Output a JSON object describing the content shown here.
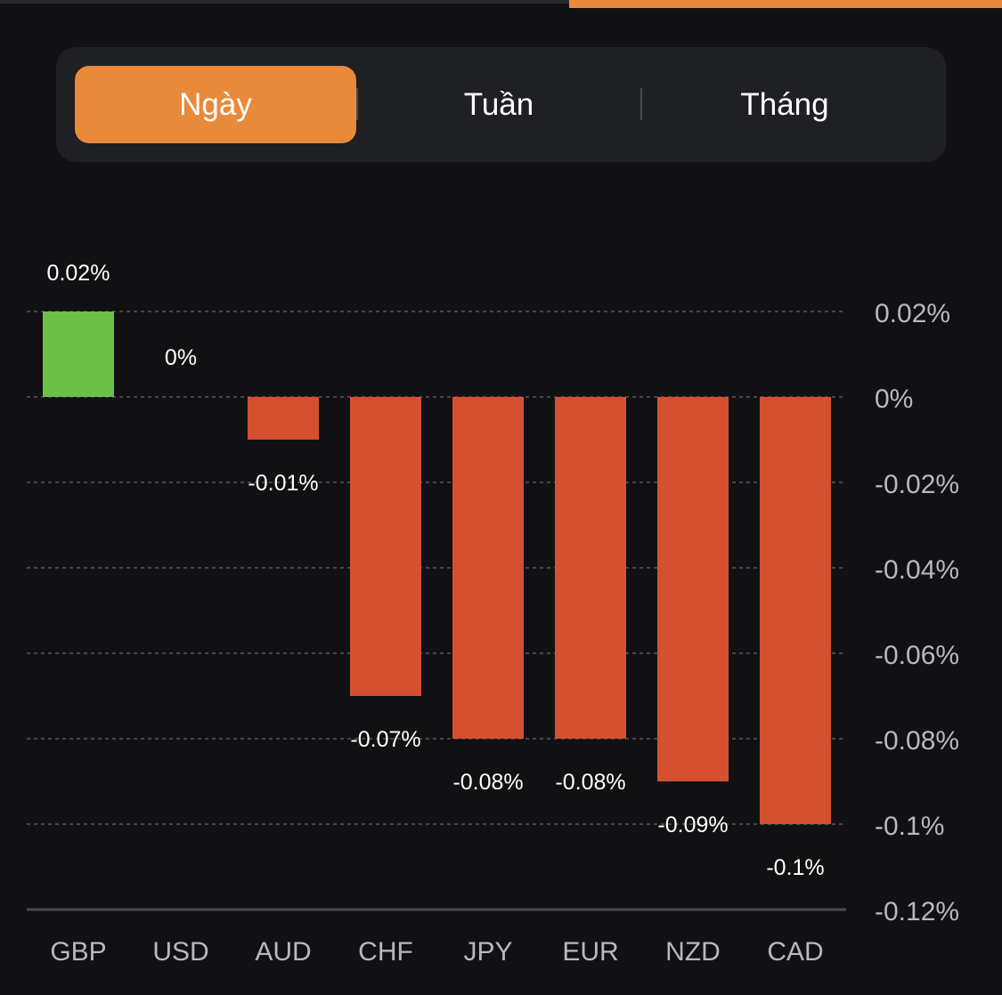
{
  "tabs": [
    {
      "label": "Ngày",
      "active": true
    },
    {
      "label": "Tuần",
      "active": false
    },
    {
      "label": "Tháng",
      "active": false
    }
  ],
  "colors": {
    "background": "#111114",
    "accent": "#e8893c",
    "positive": "#6cbf47",
    "negative": "#d4502e",
    "grid": "#55565b",
    "axis_text": "#b8b8bd"
  },
  "chart_data": {
    "type": "bar",
    "categories": [
      "GBP",
      "USD",
      "AUD",
      "CHF",
      "JPY",
      "EUR",
      "NZD",
      "CAD"
    ],
    "values": [
      0.02,
      0,
      -0.01,
      -0.07,
      -0.08,
      -0.08,
      -0.09,
      -0.1
    ],
    "value_labels": [
      "0.02%",
      "0%",
      "-0.01%",
      "-0.07%",
      "-0.08%",
      "-0.08%",
      "-0.09%",
      "-0.1%"
    ],
    "y_ticks": [
      0.02,
      0,
      -0.02,
      -0.04,
      -0.06,
      -0.08,
      -0.1,
      -0.12
    ],
    "y_tick_labels": [
      "0.02%",
      "0%",
      "-0.02%",
      "-0.04%",
      "-0.06%",
      "-0.08%",
      "-0.1%",
      "-0.12%"
    ],
    "ylim": [
      -0.12,
      0.02
    ],
    "y_axis_position": "right",
    "grid": true,
    "title": "",
    "xlabel": "",
    "ylabel": ""
  }
}
